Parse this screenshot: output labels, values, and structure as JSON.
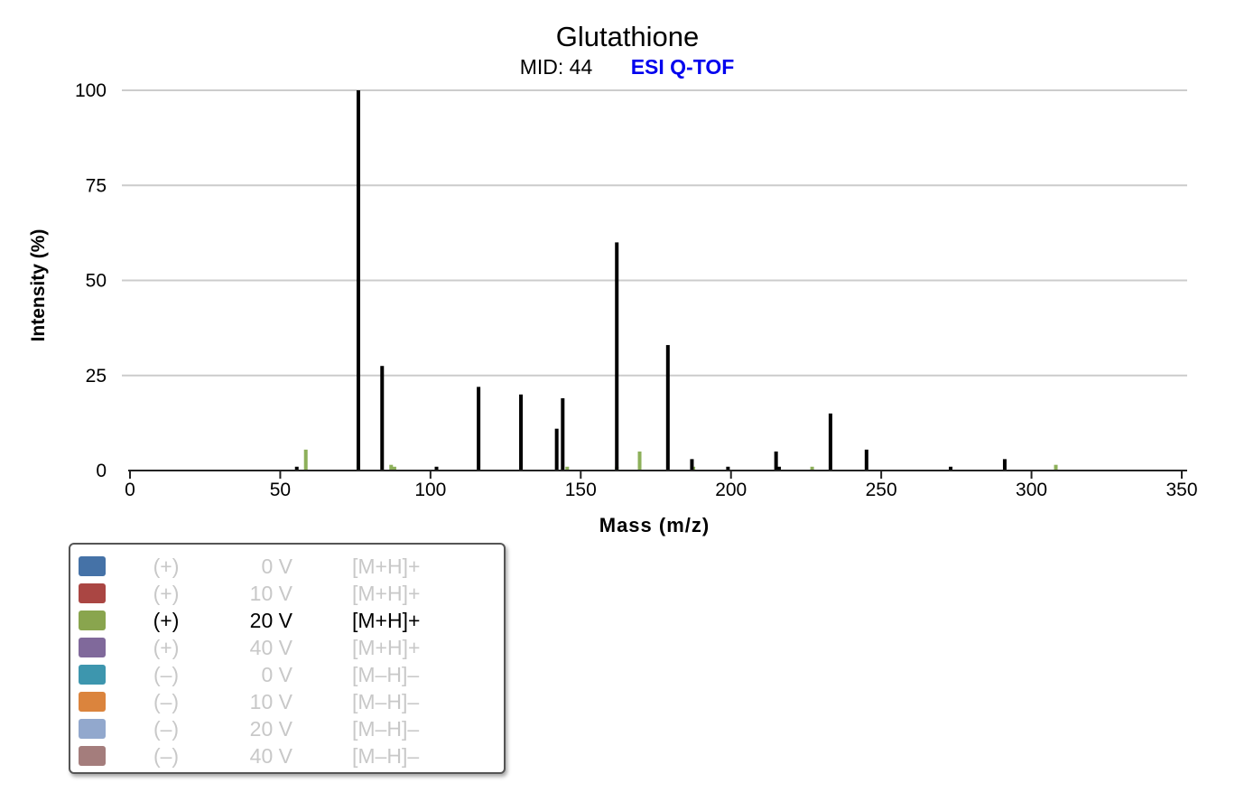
{
  "chart_data": {
    "type": "bar",
    "title": "Glutathione",
    "subtitle": "MID: 44",
    "instrument": "ESI Q-TOF",
    "xlabel": "Mass (m/z)",
    "ylabel": "Intensity (%)",
    "xlim": [
      0,
      350
    ],
    "ylim": [
      0,
      100
    ],
    "xticks": [
      "0",
      "50",
      "100",
      "150",
      "200",
      "250",
      "300",
      "350"
    ],
    "yticks": [
      "0",
      "25",
      "50",
      "75",
      "100"
    ],
    "grid": true,
    "series": [
      {
        "color": "#000000",
        "x": [
          55.5,
          76.0,
          83.9,
          102.0,
          116.0,
          130.1,
          142.0,
          144.0,
          162.0,
          179.0,
          187.0,
          199.0,
          215.0,
          216.0,
          233.1,
          245.1,
          273.1,
          291.1
        ],
        "values": [
          1.0,
          100.0,
          27.5,
          1.0,
          22.0,
          20.0,
          11.0,
          19.0,
          60.0,
          33.0,
          3.0,
          1.0,
          5.0,
          1.0,
          15.0,
          5.5,
          1.0,
          3.0
        ]
      },
      {
        "color": "#8db05a",
        "x": [
          58.5,
          76.0,
          86.9,
          88.0,
          145.5,
          162.0,
          169.6,
          187.5,
          227.0,
          308.1
        ],
        "values": [
          5.5,
          2.0,
          1.5,
          1.0,
          1.0,
          1.0,
          5.0,
          1.0,
          1.0,
          1.5
        ]
      }
    ]
  },
  "legend": [
    {
      "color": "#4572a7",
      "mode": "(+)",
      "voltage": "0 V",
      "adduct": "[M+H]+",
      "active": false
    },
    {
      "color": "#aa4643",
      "mode": "(+)",
      "voltage": "10 V",
      "adduct": "[M+H]+",
      "active": false
    },
    {
      "color": "#89a54e",
      "mode": "(+)",
      "voltage": "20 V",
      "adduct": "[M+H]+",
      "active": true
    },
    {
      "color": "#80699b",
      "mode": "(+)",
      "voltage": "40 V",
      "adduct": "[M+H]+",
      "active": false
    },
    {
      "color": "#3d96ae",
      "mode": "(–)",
      "voltage": "0 V",
      "adduct": "[M–H]–",
      "active": false
    },
    {
      "color": "#db843d",
      "mode": "(–)",
      "voltage": "10 V",
      "adduct": "[M–H]–",
      "active": false
    },
    {
      "color": "#92a8cd",
      "mode": "(–)",
      "voltage": "20 V",
      "adduct": "[M–H]–",
      "active": false
    },
    {
      "color": "#a47d7c",
      "mode": "(–)",
      "voltage": "40 V",
      "adduct": "[M–H]–",
      "active": false
    }
  ],
  "colors": {
    "instrument": "#0000ee",
    "grid": "#cccccc",
    "axis": "#222222"
  }
}
